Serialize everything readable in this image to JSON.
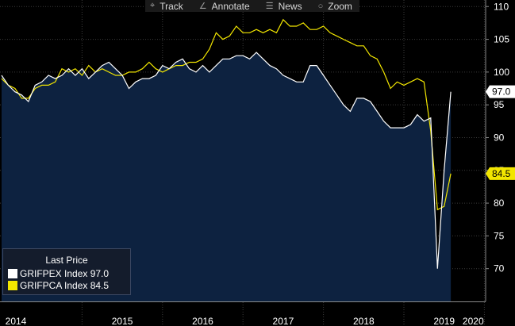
{
  "toolbar": {
    "items": [
      {
        "label": "Track",
        "icon": "crosshair-icon"
      },
      {
        "label": "Annotate",
        "icon": "pencil-icon"
      },
      {
        "label": "News",
        "icon": "news-icon"
      },
      {
        "label": "Zoom",
        "icon": "magnifier-icon"
      }
    ]
  },
  "legend": {
    "title": "Last Price",
    "entries": [
      {
        "label": "GRIFPEX Index 97.0",
        "color": "#ffffff"
      },
      {
        "label": "GRIFPCA Index 84.5",
        "color": "#f2e600"
      }
    ]
  },
  "chart_data": {
    "type": "line",
    "title": "",
    "xlabel": "",
    "ylabel": "",
    "ylim": [
      65,
      111
    ],
    "yticks": [
      70,
      75,
      80,
      85,
      90,
      95,
      100,
      105,
      110
    ],
    "x_start": "2014-01",
    "x_ticks": [
      "2014",
      "2015",
      "2016",
      "2017",
      "2018",
      "2019",
      "2020"
    ],
    "grid": true,
    "legend_position": "bottom-left",
    "series": [
      {
        "name": "GRIFPEX Index",
        "color": "#ffffff",
        "fill": "#0d2240",
        "last": 97.0,
        "values": [
          99.5,
          98.0,
          97.0,
          96.5,
          95.5,
          98.0,
          98.5,
          99.5,
          99.0,
          99.5,
          100.5,
          99.5,
          100.5,
          99.0,
          100.0,
          101.0,
          101.5,
          100.5,
          99.5,
          97.5,
          98.5,
          99.0,
          99.0,
          99.5,
          101.0,
          100.5,
          101.5,
          102.0,
          100.5,
          100.0,
          101.0,
          100.0,
          101.0,
          102.0,
          102.0,
          102.5,
          102.5,
          102.0,
          103.0,
          102.0,
          101.0,
          100.5,
          99.5,
          99.0,
          98.5,
          98.5,
          101.0,
          101.0,
          99.5,
          98.0,
          96.5,
          95.0,
          94.0,
          96.0,
          96.0,
          95.5,
          94.0,
          92.5,
          91.5,
          91.5,
          91.5,
          92.0,
          93.5,
          92.5,
          93.0,
          70.0,
          85.0,
          97.0
        ]
      },
      {
        "name": "GRIFPCA Index",
        "color": "#f2e600",
        "last": 84.5,
        "values": [
          99.0,
          98.0,
          97.5,
          96.0,
          96.0,
          97.5,
          98.0,
          98.0,
          98.5,
          100.5,
          100.0,
          100.5,
          99.5,
          101.0,
          100.0,
          100.5,
          100.0,
          99.5,
          99.5,
          100.0,
          100.0,
          100.5,
          101.5,
          100.5,
          100.0,
          100.5,
          101.0,
          101.0,
          101.5,
          101.5,
          102.0,
          103.5,
          106.0,
          105.0,
          105.5,
          107.0,
          106.0,
          106.0,
          106.5,
          106.0,
          106.5,
          106.0,
          108.0,
          107.0,
          107.0,
          107.5,
          106.5,
          106.5,
          107.0,
          106.0,
          105.5,
          105.0,
          104.5,
          104.0,
          104.0,
          102.5,
          102.0,
          100.0,
          97.5,
          98.5,
          98.0,
          98.5,
          99.0,
          98.5,
          91.0,
          79.0,
          79.5,
          84.5
        ]
      }
    ]
  }
}
